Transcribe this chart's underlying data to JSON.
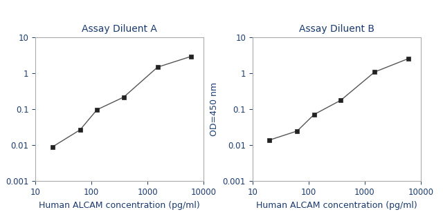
{
  "title_A": "Assay Diluent A",
  "title_B": "Assay Diluent B",
  "xlabel": "Human ALCAM concentration (pg/ml)",
  "ylabel": "OD=450 nm",
  "x_A": [
    20,
    62.5,
    125,
    375,
    1500,
    6000
  ],
  "y_A": [
    0.009,
    0.027,
    0.098,
    0.22,
    1.5,
    3.0
  ],
  "x_B": [
    20,
    62.5,
    125,
    375,
    1500,
    6000
  ],
  "y_B": [
    0.014,
    0.025,
    0.072,
    0.18,
    1.1,
    2.6
  ],
  "xlim": [
    10,
    10000
  ],
  "ylim": [
    0.001,
    10
  ],
  "line_color": "#555555",
  "marker_color": "#222222",
  "text_color": "#1a3a6e",
  "spine_color": "#aaaaaa",
  "title_fontsize": 10,
  "label_fontsize": 9,
  "tick_fontsize": 8.5
}
